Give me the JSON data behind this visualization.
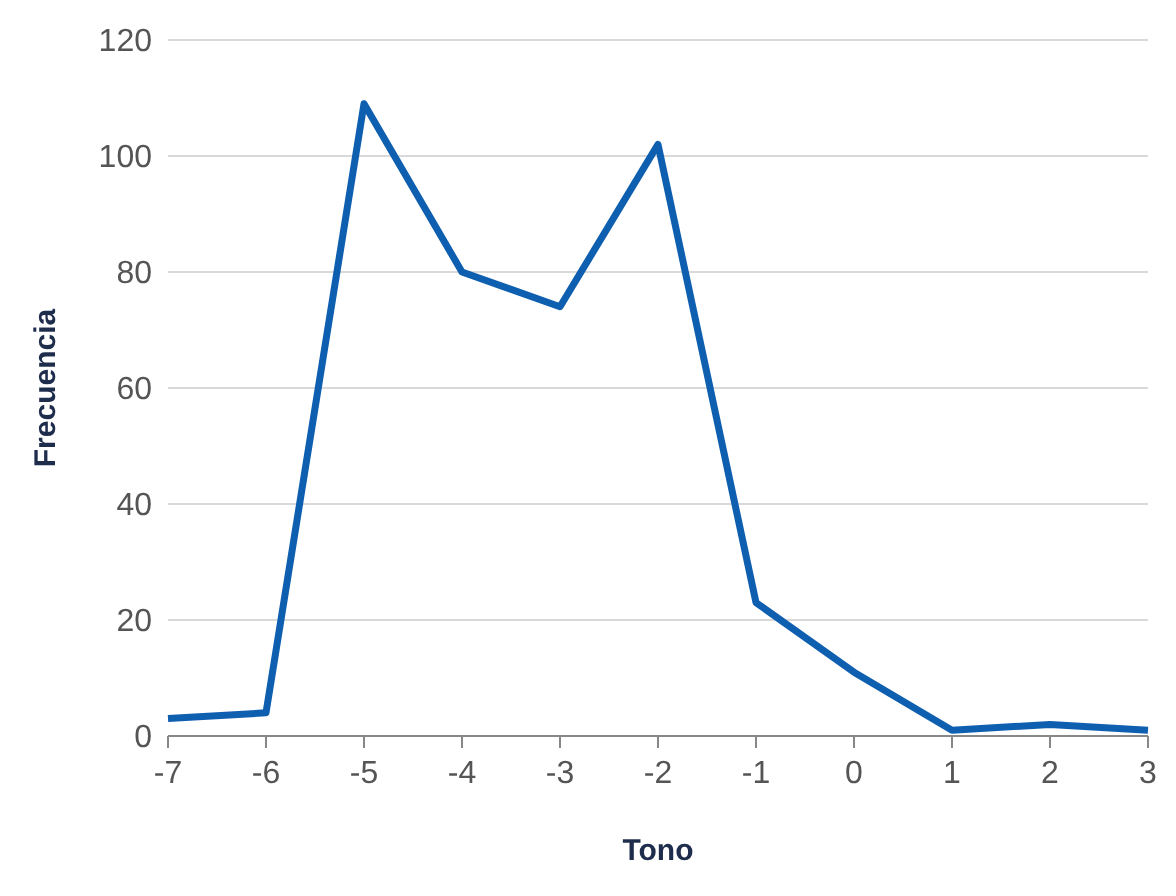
{
  "chart_data": {
    "type": "line",
    "xlabel": "Tono",
    "ylabel": "Frecuencia",
    "categories": [
      "-7",
      "-6",
      "-5",
      "-4",
      "-3",
      "-2",
      "-1",
      "0",
      "1",
      "2",
      "3"
    ],
    "series": [
      {
        "color": "#0f5fb0",
        "values": [
          3,
          4,
          109,
          80,
          74,
          102,
          23,
          11,
          1,
          2,
          1
        ]
      }
    ],
    "ylim": [
      0,
      120
    ],
    "yticks": [
      0,
      20,
      40,
      60,
      80,
      100,
      120
    ],
    "grid": "y",
    "legend": false,
    "marker": "none",
    "line_style": "solid"
  }
}
